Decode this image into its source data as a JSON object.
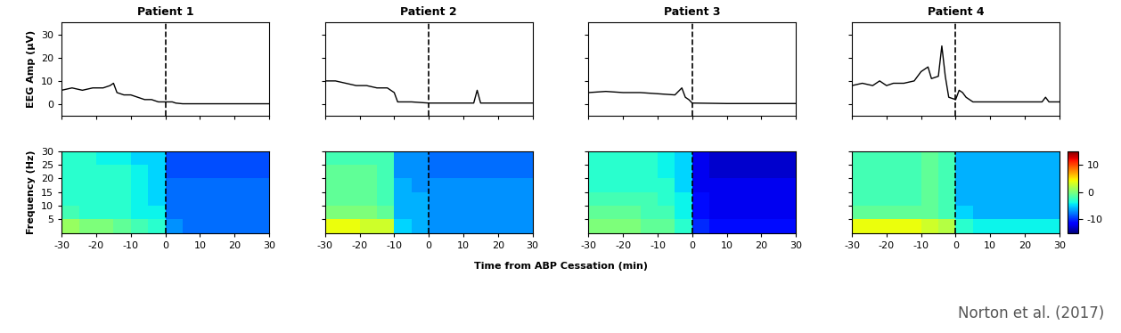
{
  "chart_data": [
    {
      "type": "line",
      "title": "Patient 1",
      "ylabel": "EEG Amp (μV)",
      "color": "#000000",
      "x": [
        -30,
        -27,
        -24,
        -21,
        -18,
        -16,
        -15,
        -14,
        -12,
        -10,
        -8,
        -6,
        -4,
        -2,
        0,
        2,
        3,
        5,
        10,
        20,
        30
      ],
      "values": [
        6,
        7,
        6,
        7,
        7,
        8,
        9,
        5,
        4,
        4,
        3,
        2,
        2,
        1,
        1,
        1,
        0.5,
        0.2,
        0.2,
        0.2,
        0.2
      ],
      "xlim": [
        -30,
        30
      ],
      "xticks": [
        -30,
        -20,
        -10,
        0,
        10,
        20,
        30
      ],
      "ylim": [
        -5,
        35
      ],
      "yticks": [
        0,
        10,
        20,
        30
      ],
      "vline": 0,
      "tick_labels": "y"
    },
    {
      "type": "line",
      "title": "Patient 2",
      "color": "#000000",
      "x": [
        -30,
        -27,
        -24,
        -21,
        -18,
        -15,
        -12,
        -10,
        -9,
        -5,
        0,
        5,
        10,
        13,
        14,
        15,
        20,
        30
      ],
      "values": [
        10,
        10,
        9,
        8,
        8,
        7,
        7,
        5,
        1,
        1,
        0.5,
        0.5,
        0.5,
        0.5,
        6,
        0.5,
        0.5,
        0.5
      ],
      "xlim": [
        -30,
        30
      ],
      "xticks": [
        -30,
        -20,
        -10,
        0,
        10,
        20,
        30
      ],
      "ylim": [
        -5,
        35
      ],
      "yticks": [
        0,
        10,
        20,
        30
      ],
      "vline": 0,
      "tick_labels": false
    },
    {
      "type": "line",
      "title": "Patient 3",
      "color": "#000000",
      "x": [
        -30,
        -25,
        -20,
        -15,
        -10,
        -5,
        -3,
        -2,
        -1,
        0,
        10,
        20,
        30
      ],
      "values": [
        5,
        5.5,
        5,
        5,
        4.5,
        4,
        7,
        3,
        2,
        0.5,
        0.3,
        0.3,
        0.3
      ],
      "xlim": [
        -30,
        30
      ],
      "xticks": [
        -30,
        -20,
        -10,
        0,
        10,
        20,
        30
      ],
      "ylim": [
        -5,
        35
      ],
      "yticks": [
        0,
        10,
        20,
        30
      ],
      "vline": 0,
      "tick_labels": false
    },
    {
      "type": "line",
      "title": "Patient 4",
      "color": "#000000",
      "x": [
        -30,
        -27,
        -24,
        -22,
        -20,
        -18,
        -15,
        -12,
        -10,
        -8,
        -7,
        -5,
        -4,
        -3,
        -2,
        0,
        1,
        2,
        3,
        5,
        10,
        20,
        25,
        26,
        27,
        30
      ],
      "values": [
        8,
        9,
        8,
        10,
        8,
        9,
        9,
        10,
        14,
        16,
        11,
        12,
        25,
        12,
        3,
        2,
        6,
        5,
        3,
        1,
        1,
        1,
        1,
        3,
        1,
        1
      ],
      "xlim": [
        -30,
        30
      ],
      "xticks": [
        -30,
        -20,
        -10,
        0,
        10,
        20,
        30
      ],
      "ylim": [
        -5,
        35
      ],
      "yticks": [
        0,
        10,
        20,
        30
      ],
      "vline": 0,
      "tick_labels": false
    },
    {
      "type": "heatmap",
      "ylabel": "Frequency (Hz)",
      "x_edges": [
        -30,
        -25,
        -20,
        -15,
        -10,
        -5,
        0,
        5,
        10,
        15,
        20,
        25,
        30
      ],
      "y_edges": [
        0,
        5,
        10,
        15,
        20,
        25,
        30
      ],
      "cells": [
        [
          1,
          0,
          0,
          -1,
          -2,
          -3,
          -7,
          -8,
          -8,
          -8,
          -8,
          -8
        ],
        [
          -2,
          -3,
          -3,
          -3,
          -4,
          -4,
          -8,
          -8,
          -8,
          -8,
          -8,
          -8
        ],
        [
          -3,
          -3,
          -3,
          -3,
          -4,
          -5,
          -8,
          -8,
          -8,
          -8,
          -8,
          -8
        ],
        [
          -3,
          -3,
          -3,
          -3,
          -4,
          -5,
          -8,
          -8,
          -8,
          -8,
          -8,
          -8
        ],
        [
          -3,
          -3,
          -3,
          -3,
          -4,
          -5,
          -9,
          -9,
          -9,
          -9,
          -9,
          -9
        ],
        [
          -3,
          -3,
          -4,
          -4,
          -5,
          -5,
          -9,
          -9,
          -9,
          -9,
          -9,
          -9
        ]
      ],
      "color_range": [
        -15,
        15
      ],
      "color_ticks": [
        -10,
        0,
        10
      ],
      "xlim": [
        -30,
        30
      ],
      "xticks": [
        -30,
        -20,
        -10,
        0,
        10,
        20,
        30
      ],
      "ylim": [
        0,
        30
      ],
      "yticks": [
        5,
        10,
        15,
        20,
        25,
        30
      ],
      "vline": 0,
      "tick_labels": true
    },
    {
      "type": "heatmap",
      "x_edges": [
        -30,
        -25,
        -20,
        -15,
        -10,
        -5,
        0,
        5,
        10,
        15,
        20,
        25,
        30
      ],
      "y_edges": [
        0,
        5,
        10,
        15,
        20,
        25,
        30
      ],
      "cells": [
        [
          4,
          4,
          3,
          3,
          -5,
          -6,
          -7,
          -7,
          -7,
          -7,
          -7,
          -7
        ],
        [
          0,
          0,
          0,
          -1,
          -6,
          -6,
          -7,
          -7,
          -7,
          -7,
          -7,
          -7
        ],
        [
          -1,
          -1,
          -1,
          -2,
          -6,
          -6,
          -7,
          -7,
          -7,
          -7,
          -7,
          -7
        ],
        [
          -1,
          -1,
          -1,
          -2,
          -6,
          -7,
          -7,
          -7,
          -7,
          -7,
          -7,
          -7
        ],
        [
          -1,
          -1,
          -1,
          -2,
          -7,
          -7,
          -8,
          -8,
          -8,
          -8,
          -8,
          -8
        ],
        [
          -2,
          -2,
          -2,
          -2,
          -7,
          -7,
          -8,
          -8,
          -8,
          -8,
          -8,
          -8
        ]
      ],
      "color_range": [
        -15,
        15
      ],
      "color_ticks": [
        -10,
        0,
        10
      ],
      "xlim": [
        -30,
        30
      ],
      "xticks": [
        -30,
        -20,
        -10,
        0,
        10,
        20,
        30
      ],
      "ylim": [
        0,
        30
      ],
      "yticks": [
        5,
        10,
        15,
        20,
        25,
        30
      ],
      "vline": 0,
      "tick_labels": "x"
    },
    {
      "type": "heatmap",
      "x_edges": [
        -30,
        -25,
        -20,
        -15,
        -10,
        -5,
        0,
        5,
        10,
        15,
        20,
        25,
        30
      ],
      "y_edges": [
        0,
        5,
        10,
        15,
        20,
        25,
        30
      ],
      "cells": [
        [
          0,
          0,
          0,
          -1,
          -1,
          -3,
          -10,
          -11,
          -11,
          -11,
          -11,
          -11
        ],
        [
          -1,
          -1,
          -1,
          -2,
          -2,
          -4,
          -11,
          -12,
          -12,
          -12,
          -12,
          -12
        ],
        [
          -2,
          -2,
          -2,
          -2,
          -3,
          -4,
          -11,
          -12,
          -12,
          -12,
          -12,
          -12
        ],
        [
          -3,
          -3,
          -3,
          -3,
          -3,
          -5,
          -12,
          -12,
          -12,
          -12,
          -12,
          -12
        ],
        [
          -3,
          -3,
          -3,
          -3,
          -4,
          -5,
          -12,
          -13,
          -13,
          -13,
          -13,
          -13
        ],
        [
          -3,
          -3,
          -3,
          -3,
          -4,
          -5,
          -12,
          -13,
          -13,
          -13,
          -13,
          -13
        ]
      ],
      "color_range": [
        -15,
        15
      ],
      "color_ticks": [
        -10,
        0,
        10
      ],
      "xlim": [
        -30,
        30
      ],
      "xticks": [
        -30,
        -20,
        -10,
        0,
        10,
        20,
        30
      ],
      "ylim": [
        0,
        30
      ],
      "yticks": [
        5,
        10,
        15,
        20,
        25,
        30
      ],
      "vline": 0,
      "tick_labels": "x"
    },
    {
      "type": "heatmap",
      "x_edges": [
        -30,
        -25,
        -20,
        -15,
        -10,
        -5,
        0,
        5,
        10,
        15,
        20,
        25,
        30
      ],
      "y_edges": [
        0,
        5,
        10,
        15,
        20,
        25,
        30
      ],
      "cells": [
        [
          4,
          4,
          4,
          4,
          3,
          2,
          -3,
          -4,
          -4,
          -4,
          -4,
          -4
        ],
        [
          -1,
          -1,
          -1,
          -1,
          -1,
          -2,
          -5,
          -6,
          -6,
          -6,
          -6,
          -6
        ],
        [
          -2,
          -2,
          -2,
          -2,
          -1,
          -2,
          -6,
          -6,
          -6,
          -6,
          -6,
          -6
        ],
        [
          -2,
          -2,
          -2,
          -2,
          -1,
          -2,
          -6,
          -6,
          -6,
          -6,
          -6,
          -6
        ],
        [
          -2,
          -2,
          -2,
          -2,
          -1,
          -2,
          -6,
          -6,
          -6,
          -6,
          -6,
          -6
        ],
        [
          -2,
          -2,
          -2,
          -2,
          -1,
          -2,
          -6,
          -6,
          -6,
          -6,
          -6,
          -6
        ]
      ],
      "color_range": [
        -15,
        15
      ],
      "color_ticks": [
        -10,
        0,
        10
      ],
      "xlim": [
        -30,
        30
      ],
      "xticks": [
        -30,
        -20,
        -10,
        0,
        10,
        20,
        30
      ],
      "ylim": [
        0,
        30
      ],
      "yticks": [
        5,
        10,
        15,
        20,
        25,
        30
      ],
      "vline": 0,
      "tick_labels": "x"
    }
  ],
  "figure": {
    "xlabel": "Time from ABP Cessation (min)",
    "source": "Norton et al. (2017)"
  }
}
